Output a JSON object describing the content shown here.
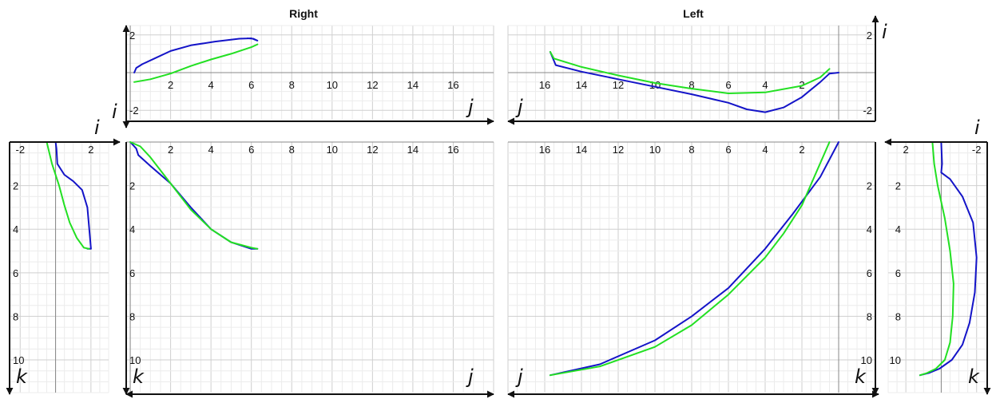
{
  "colors": {
    "blue": "#1414c8",
    "green": "#22e022",
    "grid_major": "#cfcfcf",
    "grid_minor": "#ececec",
    "axis": "#111111",
    "zero_line": "#888888"
  },
  "titles": {
    "right": "Right",
    "left": "Left"
  },
  "chart_data": [
    {
      "type": "line",
      "id": "right_ij",
      "title": "Right",
      "xlabel": "j",
      "ylabel": "i",
      "xlim": [
        -0.2,
        18
      ],
      "ylim": [
        -2.5,
        2.5
      ],
      "x_ticks": [
        "2",
        "4",
        "6",
        "8",
        "10",
        "12",
        "14",
        "16"
      ],
      "y_ticks": [
        "-2",
        "2"
      ],
      "grid": true,
      "series": [
        {
          "color": "blue",
          "x": [
            0.2,
            0.3,
            0.6,
            1.2,
            2.0,
            3.0,
            4.2,
            5.4,
            6.0,
            6.3,
            6.1,
            5.8
          ],
          "y": [
            0.0,
            0.25,
            0.45,
            0.75,
            1.15,
            1.45,
            1.65,
            1.8,
            1.82,
            1.7,
            1.8,
            1.82
          ]
        },
        {
          "color": "green",
          "x": [
            0.2,
            1.0,
            2.0,
            3.0,
            4.0,
            5.0,
            6.0,
            6.3
          ],
          "y": [
            -0.5,
            -0.35,
            -0.05,
            0.35,
            0.7,
            1.0,
            1.35,
            1.5
          ]
        }
      ]
    },
    {
      "type": "line",
      "id": "left_ij",
      "title": "Left",
      "xlabel": "j",
      "ylabel": "i",
      "xlim": [
        18,
        -2
      ],
      "ylim": [
        -2.5,
        2.5
      ],
      "x_ticks": [
        "16",
        "14",
        "12",
        "10",
        "8",
        "6",
        "4",
        "2"
      ],
      "y_ticks": [
        "2",
        "-2"
      ],
      "grid": true,
      "series": [
        {
          "color": "blue",
          "x": [
            15.7,
            15.4,
            14.0,
            12.0,
            10.0,
            8.0,
            6.0,
            5.0,
            4.0,
            3.0,
            2.0,
            1.5,
            1.0,
            0.5,
            0.0
          ],
          "y": [
            1.1,
            0.4,
            0.05,
            -0.35,
            -0.75,
            -1.15,
            -1.6,
            -1.95,
            -2.1,
            -1.85,
            -1.3,
            -0.9,
            -0.5,
            -0.05,
            0.0
          ]
        },
        {
          "color": "green",
          "x": [
            15.7,
            15.5,
            14.0,
            12.0,
            10.0,
            8.0,
            6.0,
            4.0,
            2.0,
            1.0,
            0.5
          ],
          "y": [
            1.1,
            0.75,
            0.3,
            -0.15,
            -0.55,
            -0.85,
            -1.1,
            -1.05,
            -0.7,
            -0.25,
            0.2
          ]
        }
      ]
    },
    {
      "type": "line",
      "id": "right_ik",
      "xlabel": "i",
      "ylabel": "k",
      "xlim": [
        -2.6,
        3
      ],
      "ylim": [
        0,
        11.5
      ],
      "x_ticks": [
        "-2",
        "2"
      ],
      "y_ticks": [
        "2",
        "4",
        "6",
        "8",
        "10"
      ],
      "grid": true,
      "series": [
        {
          "color": "blue",
          "x": [
            0.0,
            0.05,
            0.1,
            0.5,
            1.0,
            1.5,
            1.8,
            2.0,
            1.8
          ],
          "y": [
            0.0,
            0.3,
            1.0,
            1.5,
            1.8,
            2.2,
            3.0,
            4.9,
            4.9
          ]
        },
        {
          "color": "green",
          "x": [
            -0.5,
            -0.2,
            0.2,
            0.5,
            0.8,
            1.2,
            1.6,
            1.9
          ],
          "y": [
            0.0,
            1.0,
            2.0,
            2.9,
            3.7,
            4.4,
            4.85,
            4.9
          ]
        }
      ]
    },
    {
      "type": "line",
      "id": "right_jk",
      "xlabel": "j",
      "ylabel": "k",
      "xlim": [
        -0.2,
        18
      ],
      "ylim": [
        0,
        11.5
      ],
      "x_ticks": [
        "2",
        "4",
        "6",
        "8",
        "10",
        "12",
        "14",
        "16"
      ],
      "y_ticks": [
        "2",
        "4",
        "6",
        "8",
        "10"
      ],
      "grid": true,
      "series": [
        {
          "color": "blue",
          "x": [
            0.0,
            0.3,
            0.4,
            1.0,
            2.0,
            3.0,
            4.0,
            5.0,
            6.0,
            6.3
          ],
          "y": [
            0.0,
            0.3,
            0.6,
            1.1,
            1.9,
            3.0,
            4.0,
            4.6,
            4.9,
            4.9
          ]
        },
        {
          "color": "green",
          "x": [
            0.0,
            0.5,
            1.0,
            2.0,
            3.0,
            4.0,
            5.0,
            6.0,
            6.3
          ],
          "y": [
            0.0,
            0.2,
            0.7,
            1.9,
            3.1,
            4.0,
            4.6,
            4.85,
            4.9
          ]
        }
      ]
    },
    {
      "type": "line",
      "id": "left_jk",
      "xlabel": "j",
      "ylabel": "k",
      "xlim": [
        18,
        -2
      ],
      "ylim": [
        0,
        11.5
      ],
      "x_ticks": [
        "16",
        "14",
        "12",
        "10",
        "8",
        "6",
        "4",
        "2"
      ],
      "y_ticks": [
        "2",
        "4",
        "6",
        "8",
        "10"
      ],
      "grid": true,
      "series": [
        {
          "color": "blue",
          "x": [
            15.7,
            13.0,
            10.0,
            8.0,
            6.0,
            4.0,
            2.5,
            1.0,
            0.0
          ],
          "y": [
            10.7,
            10.2,
            9.1,
            8.0,
            6.7,
            4.9,
            3.3,
            1.6,
            0.0
          ]
        },
        {
          "color": "green",
          "x": [
            15.7,
            13.0,
            10.0,
            8.0,
            6.0,
            4.0,
            3.0,
            2.0,
            0.5
          ],
          "y": [
            10.7,
            10.3,
            9.4,
            8.4,
            7.0,
            5.3,
            4.2,
            2.9,
            0.0
          ]
        }
      ]
    },
    {
      "type": "line",
      "id": "left_ik",
      "xlabel": "i",
      "ylabel": "k",
      "xlim": [
        3,
        -2.6
      ],
      "ylim": [
        0,
        11.5
      ],
      "x_ticks": [
        "2",
        "-2"
      ],
      "y_ticks": [
        "2",
        "4",
        "6",
        "8",
        "10"
      ],
      "grid": true,
      "series": [
        {
          "color": "blue",
          "x": [
            0.0,
            -0.05,
            0.0,
            -0.5,
            -1.2,
            -1.8,
            -2.0,
            -1.9,
            -1.6,
            -1.2,
            -0.6,
            0.1,
            0.7,
            1.2
          ],
          "y": [
            0.0,
            1.0,
            1.4,
            1.7,
            2.5,
            3.7,
            5.3,
            6.9,
            8.3,
            9.3,
            10.0,
            10.4,
            10.6,
            10.7
          ]
        },
        {
          "color": "green",
          "x": [
            0.5,
            0.4,
            0.2,
            -0.2,
            -0.5,
            -0.7,
            -0.65,
            -0.5,
            -0.2,
            0.3,
            0.8,
            1.2
          ],
          "y": [
            0.0,
            1.0,
            2.0,
            3.5,
            5.0,
            6.5,
            8.0,
            9.2,
            10.0,
            10.4,
            10.6,
            10.7
          ]
        }
      ]
    }
  ]
}
